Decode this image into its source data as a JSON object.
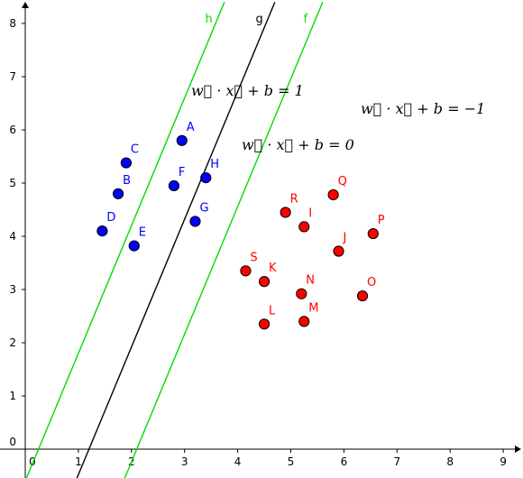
{
  "chart_data": {
    "type": "scatter",
    "xlim": [
      0,
      9
    ],
    "ylim": [
      0,
      8
    ],
    "x_ticks": [
      "0",
      "1",
      "2",
      "3",
      "4",
      "5",
      "6",
      "7",
      "8",
      "9"
    ],
    "y_ticks": [
      "0",
      "1",
      "2",
      "3",
      "4",
      "5",
      "6",
      "7",
      "8"
    ],
    "grid": false,
    "colors": {
      "blue": "#0000ff",
      "red": "#ff0000",
      "green": "#00dd00",
      "black": "#000000",
      "axis": "#000000"
    },
    "series": [
      {
        "color": "#0000ff",
        "points": [
          {
            "label": "A",
            "x": 2.95,
            "y": 5.8
          },
          {
            "label": "B",
            "x": 1.75,
            "y": 4.8
          },
          {
            "label": "C",
            "x": 1.9,
            "y": 5.38
          },
          {
            "label": "D",
            "x": 1.45,
            "y": 4.1
          },
          {
            "label": "E",
            "x": 2.05,
            "y": 3.82
          },
          {
            "label": "F",
            "x": 2.8,
            "y": 4.95
          },
          {
            "label": "G",
            "x": 3.2,
            "y": 4.28
          },
          {
            "label": "H",
            "x": 3.4,
            "y": 5.1
          }
        ]
      },
      {
        "color": "#ff0000",
        "points": [
          {
            "label": "I",
            "x": 5.25,
            "y": 4.18
          },
          {
            "label": "J",
            "x": 5.9,
            "y": 3.72
          },
          {
            "label": "K",
            "x": 4.5,
            "y": 3.15
          },
          {
            "label": "L",
            "x": 4.5,
            "y": 2.35
          },
          {
            "label": "M",
            "x": 5.25,
            "y": 2.4
          },
          {
            "label": "N",
            "x": 5.2,
            "y": 2.92
          },
          {
            "label": "O",
            "x": 6.35,
            "y": 2.88
          },
          {
            "label": "P",
            "x": 6.55,
            "y": 4.05
          },
          {
            "label": "Q",
            "x": 5.8,
            "y": 4.78
          },
          {
            "label": "R",
            "x": 4.9,
            "y": 4.45
          },
          {
            "label": "S",
            "x": 4.15,
            "y": 3.35
          }
        ]
      }
    ],
    "lines": [
      {
        "label": "h",
        "color": "#00dd00",
        "x0": 0.25,
        "slope": 2.4
      },
      {
        "label": "g",
        "color": "#000000",
        "x0": 1.2,
        "slope": 2.4
      },
      {
        "label": "f",
        "color": "#00dd00",
        "x0": 2.1,
        "slope": 2.4
      }
    ],
    "equations": [
      {
        "text": "w⃗ · x⃗ + b = 1"
      },
      {
        "text": "w⃗ · x⃗ + b = −1"
      },
      {
        "text": "w⃗ · x⃗ + b = 0"
      }
    ]
  }
}
